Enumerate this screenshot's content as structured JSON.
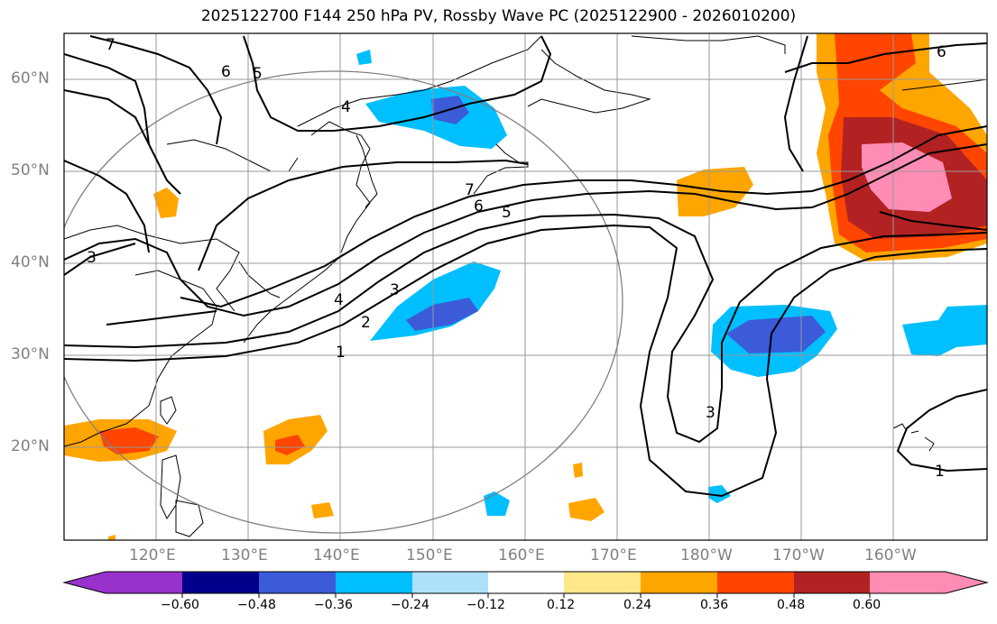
{
  "title": "2025122700 F144 250 hPa PV, Rossby Wave PC (2025122900 - 2026010200)",
  "map": {
    "lat_labels": [
      "60°N",
      "50°N",
      "40°N",
      "30°N",
      "20°N"
    ],
    "lon_labels": [
      "120°E",
      "130°E",
      "140°E",
      "150°E",
      "160°E",
      "170°E",
      "180°W",
      "170°W",
      "160°W"
    ],
    "contour_labels": [
      "7",
      "6",
      "5",
      "4",
      "3",
      "7",
      "6",
      "5",
      "4",
      "3",
      "2",
      "1",
      "3",
      "6",
      "1"
    ]
  },
  "colorbar": {
    "ticks": [
      "−0.60",
      "−0.48",
      "−0.36",
      "−0.24",
      "−0.12",
      "0.12",
      "0.24",
      "0.36",
      "0.48",
      "0.60"
    ],
    "colors": [
      "#9932CC",
      "#00008B",
      "#3B5BD9",
      "#00BFFF",
      "#ADE0FA",
      "#FFFFFF",
      "#FFE88A",
      "#FFA500",
      "#FF4500",
      "#B22222",
      "#FF8CB4"
    ]
  }
}
